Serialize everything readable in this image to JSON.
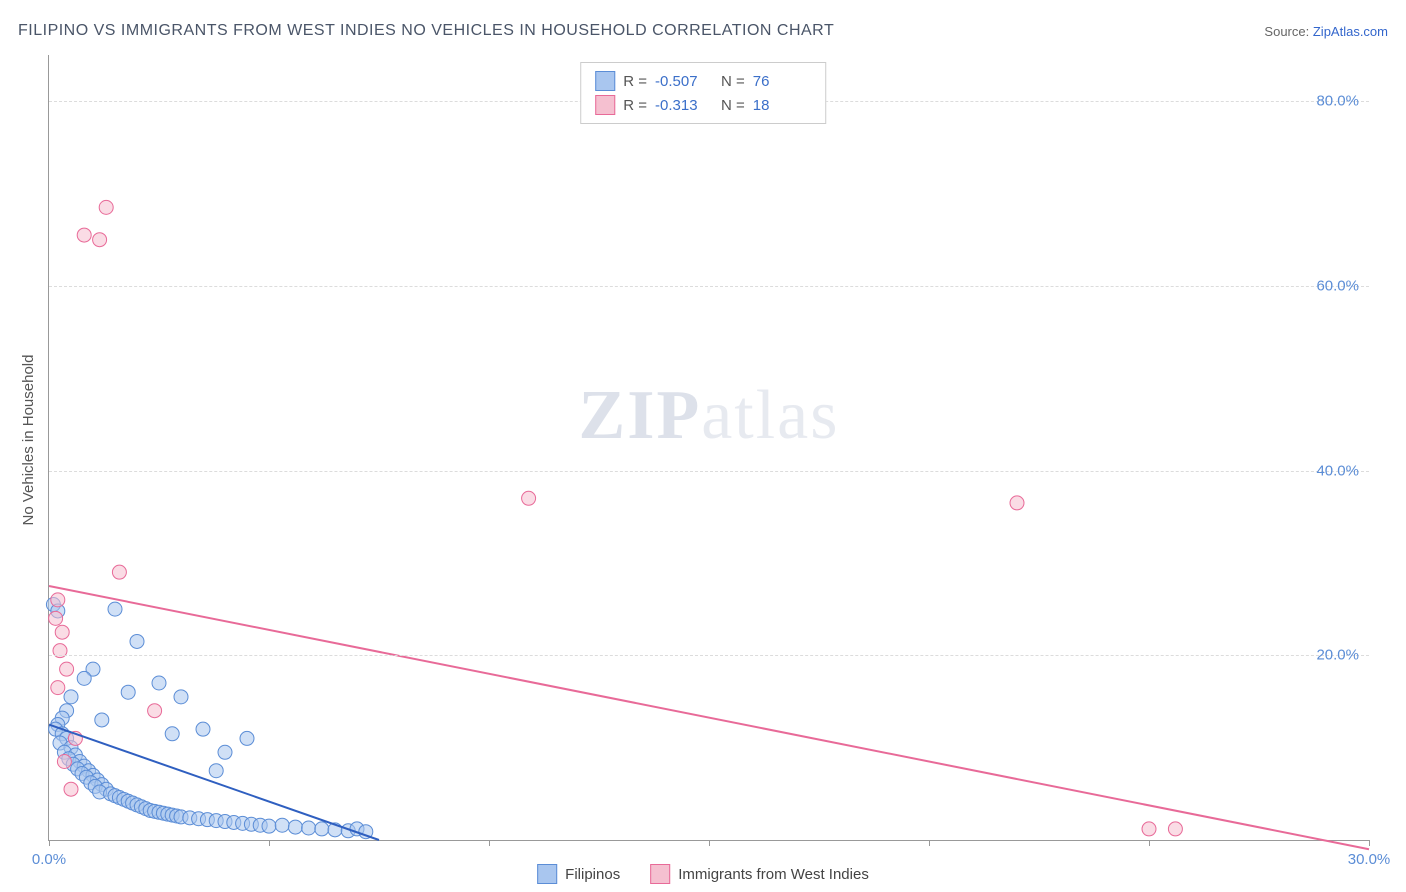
{
  "title": "FILIPINO VS IMMIGRANTS FROM WEST INDIES NO VEHICLES IN HOUSEHOLD CORRELATION CHART",
  "source_label": "Source:",
  "source_name": "ZipAtlas.com",
  "ylabel": "No Vehicles in Household",
  "watermark_a": "ZIP",
  "watermark_b": "atlas",
  "chart": {
    "type": "scatter-with-trend",
    "background_color": "#ffffff",
    "grid_color": "#dcdcdc",
    "axis_color": "#999999",
    "tick_label_color": "#5b8dd6",
    "tick_fontsize": 15,
    "xlim": [
      0,
      30
    ],
    "ylim": [
      0,
      85
    ],
    "xticks": [
      0,
      5,
      10,
      15,
      20,
      25,
      30
    ],
    "xtick_labels": [
      "0.0%",
      "",
      "",
      "",
      "",
      "",
      "30.0%"
    ],
    "ygrid": [
      20,
      40,
      60,
      80
    ],
    "ytick_labels": [
      "20.0%",
      "40.0%",
      "60.0%",
      "80.0%"
    ],
    "marker_radius": 7,
    "marker_opacity": 0.55,
    "trend_line_width": 2,
    "series": [
      {
        "name": "Filipinos",
        "color_fill": "#a9c6ef",
        "color_stroke": "#5b8dd6",
        "trend_color": "#2f5fc0",
        "R": "-0.507",
        "N": "76",
        "trend": {
          "x1": 0,
          "y1": 12.5,
          "x2": 7.5,
          "y2": 0
        },
        "points": [
          [
            0.1,
            25.5
          ],
          [
            0.2,
            24.8
          ],
          [
            0.4,
            14.0
          ],
          [
            0.3,
            13.2
          ],
          [
            0.2,
            12.5
          ],
          [
            0.15,
            12.0
          ],
          [
            0.3,
            11.5
          ],
          [
            0.4,
            11.0
          ],
          [
            0.25,
            10.5
          ],
          [
            0.5,
            10.0
          ],
          [
            0.35,
            9.5
          ],
          [
            0.6,
            9.2
          ],
          [
            0.45,
            8.8
          ],
          [
            0.7,
            8.5
          ],
          [
            0.55,
            8.2
          ],
          [
            0.8,
            8.0
          ],
          [
            0.65,
            7.7
          ],
          [
            0.9,
            7.5
          ],
          [
            0.75,
            7.2
          ],
          [
            1.0,
            7.0
          ],
          [
            0.85,
            6.8
          ],
          [
            1.1,
            6.5
          ],
          [
            0.95,
            6.2
          ],
          [
            1.2,
            6.0
          ],
          [
            1.05,
            5.8
          ],
          [
            1.3,
            5.5
          ],
          [
            1.15,
            5.2
          ],
          [
            1.4,
            5.0
          ],
          [
            1.5,
            4.8
          ],
          [
            1.6,
            4.6
          ],
          [
            1.7,
            4.4
          ],
          [
            1.8,
            4.2
          ],
          [
            1.9,
            4.0
          ],
          [
            2.0,
            3.8
          ],
          [
            2.1,
            3.6
          ],
          [
            2.2,
            3.4
          ],
          [
            2.3,
            3.2
          ],
          [
            2.4,
            3.1
          ],
          [
            2.5,
            3.0
          ],
          [
            2.6,
            2.9
          ],
          [
            2.7,
            2.8
          ],
          [
            2.8,
            2.7
          ],
          [
            2.9,
            2.6
          ],
          [
            3.0,
            2.5
          ],
          [
            3.2,
            2.4
          ],
          [
            3.4,
            2.3
          ],
          [
            3.6,
            2.2
          ],
          [
            3.8,
            2.1
          ],
          [
            4.0,
            2.0
          ],
          [
            4.2,
            1.9
          ],
          [
            4.4,
            1.8
          ],
          [
            4.6,
            1.7
          ],
          [
            4.8,
            1.6
          ],
          [
            5.0,
            1.5
          ],
          [
            5.3,
            1.6
          ],
          [
            5.6,
            1.4
          ],
          [
            5.9,
            1.3
          ],
          [
            6.2,
            1.2
          ],
          [
            6.5,
            1.1
          ],
          [
            6.8,
            1.0
          ],
          [
            7.0,
            1.2
          ],
          [
            7.2,
            0.9
          ],
          [
            1.5,
            25.0
          ],
          [
            2.0,
            21.5
          ],
          [
            1.0,
            18.5
          ],
          [
            2.5,
            17.0
          ],
          [
            3.0,
            15.5
          ],
          [
            1.2,
            13.0
          ],
          [
            2.8,
            11.5
          ],
          [
            3.5,
            12.0
          ],
          [
            4.0,
            9.5
          ],
          [
            4.5,
            11.0
          ],
          [
            3.8,
            7.5
          ],
          [
            1.8,
            16.0
          ],
          [
            0.5,
            15.5
          ],
          [
            0.8,
            17.5
          ]
        ]
      },
      {
        "name": "Immigrants from West Indies",
        "color_fill": "#f5c0d0",
        "color_stroke": "#e86a98",
        "trend_color": "#e86a98",
        "R": "-0.313",
        "N": "18",
        "trend": {
          "x1": 0,
          "y1": 27.5,
          "x2": 30,
          "y2": -1.0
        },
        "points": [
          [
            1.3,
            68.5
          ],
          [
            0.8,
            65.5
          ],
          [
            1.15,
            65.0
          ],
          [
            1.6,
            29.0
          ],
          [
            10.9,
            37.0
          ],
          [
            0.2,
            26.0
          ],
          [
            0.15,
            24.0
          ],
          [
            0.3,
            22.5
          ],
          [
            0.25,
            20.5
          ],
          [
            0.4,
            18.5
          ],
          [
            0.2,
            16.5
          ],
          [
            2.4,
            14.0
          ],
          [
            0.35,
            8.5
          ],
          [
            0.5,
            5.5
          ],
          [
            25.0,
            1.2
          ],
          [
            25.6,
            1.2
          ],
          [
            22.0,
            36.5
          ],
          [
            0.6,
            11.0
          ]
        ]
      }
    ]
  },
  "legend_top_labels": {
    "R": "R =",
    "N": "N ="
  },
  "legend_bottom": [
    {
      "label": "Filipinos",
      "fill": "#a9c6ef",
      "stroke": "#5b8dd6"
    },
    {
      "label": "Immigrants from West Indies",
      "fill": "#f5c0d0",
      "stroke": "#e86a98"
    }
  ]
}
